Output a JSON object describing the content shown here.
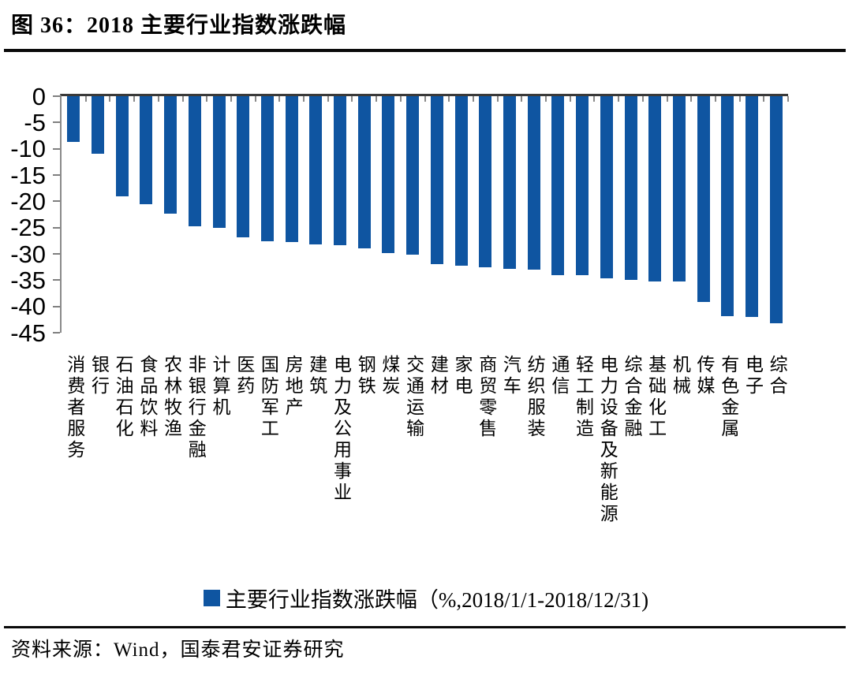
{
  "header": {
    "title": "图 36：2018 主要行业指数涨跌幅"
  },
  "legend": {
    "label": "主要行业指数涨跌幅（%,2018/1/1-2018/12/31)"
  },
  "footer": {
    "source": "资料来源：Wind，国泰君安证券研究"
  },
  "colors": {
    "bar": "#0F55A1",
    "axis_line": "#3a3a3a",
    "tick": "#8a8a8a",
    "rule": "#0a0a0a"
  },
  "chart_data": {
    "type": "bar",
    "title": "图 36：2018 主要行业指数涨跌幅",
    "xlabel": "",
    "ylabel": "",
    "ylim": [
      -45,
      0
    ],
    "yticks": [
      0,
      -5,
      -10,
      -15,
      -20,
      -25,
      -30,
      -35,
      -40,
      -45
    ],
    "grid": false,
    "legend_label": "主要行业指数涨跌幅（%,2018/1/1-2018/12/31)",
    "legend_position": "bottom",
    "bar_color": "#0F55A1",
    "categories": [
      "消费者服务",
      "银行",
      "石油石化",
      "食品饮料",
      "农林牧渔",
      "非银行金融",
      "计算机",
      "医药",
      "国防军工",
      "房地产",
      "建筑",
      "电力及公用事业",
      "钢铁",
      "煤炭",
      "交通运输",
      "建材",
      "家电",
      "商贸零售",
      "汽车",
      "纺织服装",
      "通信",
      "轻工制造",
      "电力设备及新能源",
      "综合金融",
      "基础化工",
      "机械",
      "传媒",
      "有色金属",
      "电子",
      "综合"
    ],
    "values": [
      -8.7,
      -10.9,
      -19.0,
      -20.6,
      -22.3,
      -24.7,
      -25.1,
      -26.8,
      -27.6,
      -27.8,
      -28.2,
      -28.4,
      -28.9,
      -29.8,
      -30.1,
      -31.9,
      -32.3,
      -32.6,
      -32.8,
      -33.0,
      -34.0,
      -34.1,
      -34.6,
      -35.0,
      -35.2,
      -35.3,
      -39.2,
      -41.8,
      -42.0,
      -43.2
    ]
  }
}
